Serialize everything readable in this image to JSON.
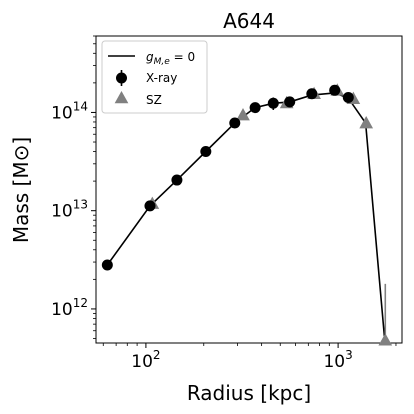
{
  "chart_data": {
    "type": "scatter",
    "title": "A644",
    "xlabel": "Radius [kpc]",
    "ylabel": "Mass [M⊙]",
    "xscale": "log",
    "yscale": "log",
    "xlim": [
      55,
      2150
    ],
    "ylim": [
      450000000000.0,
      600000000000000.0
    ],
    "grid": false,
    "legend_position": "top-left",
    "x_ticks": [
      {
        "value": 100,
        "base": "10",
        "exp": "2"
      },
      {
        "value": 1000,
        "base": "10",
        "exp": "3"
      }
    ],
    "y_ticks": [
      {
        "value": 1000000000000.0,
        "base": "10",
        "exp": "12"
      },
      {
        "value": 10000000000000.0,
        "base": "10",
        "exp": "13"
      },
      {
        "value": 100000000000000.0,
        "base": "10",
        "exp": "14"
      }
    ],
    "series": [
      {
        "name": "g_{M,e}=0",
        "label_main": "g",
        "label_sub": "M,e",
        "label_rest": " = 0",
        "kind": "line",
        "color": "#000000",
        "x": [
          63,
          105,
          145,
          205,
          290,
          370,
          460,
          560,
          730,
          960,
          1130,
          1390,
          1750
        ],
        "y": [
          2800000000000.0,
          11200000000000.0,
          20500000000000.0,
          40000000000000.0,
          78000000000000.0,
          112000000000000.0,
          124000000000000.0,
          128000000000000.0,
          150000000000000.0,
          158000000000000.0,
          140000000000000.0,
          78000000000000.0,
          470000000000.0
        ]
      },
      {
        "name": "X-ray",
        "kind": "marker-circle",
        "color": "#000000",
        "x": [
          63,
          105,
          145,
          205,
          290,
          370,
          460,
          560,
          730,
          960,
          1130
        ],
        "y": [
          2800000000000.0,
          11200000000000.0,
          20500000000000.0,
          40000000000000.0,
          78000000000000.0,
          112000000000000.0,
          124000000000000.0,
          128000000000000.0,
          155000000000000.0,
          168000000000000.0,
          142000000000000.0
        ],
        "yerr": [
          0,
          0,
          0,
          0,
          0,
          0,
          18000000000000.0,
          0,
          0,
          0,
          0
        ]
      },
      {
        "name": "SZ",
        "kind": "marker-triangle",
        "color": "#808080",
        "x": [
          108,
          320,
          540,
          750,
          990,
          1200,
          1400,
          1760
        ],
        "y": [
          11800000000000.0,
          94000000000000.0,
          125000000000000.0,
          155000000000000.0,
          168000000000000.0,
          138000000000000.0,
          78000000000000.0,
          480000000000.0
        ],
        "y_upper": [
          null,
          null,
          null,
          null,
          null,
          null,
          null,
          1800000000000.0
        ]
      }
    ]
  }
}
